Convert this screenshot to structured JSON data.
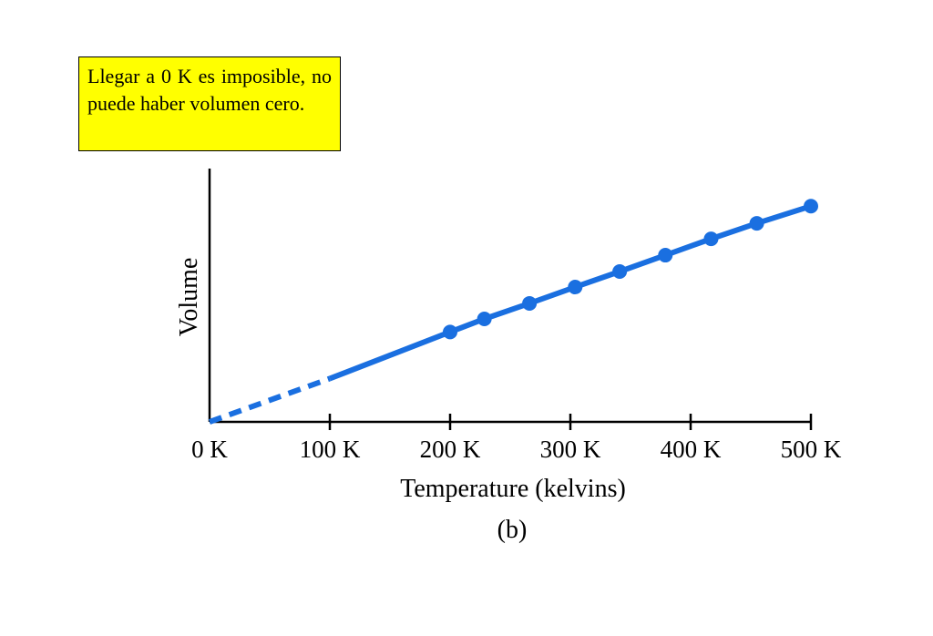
{
  "note": {
    "text": "Llegar a 0 K es imposible, no puede haber volumen cero."
  },
  "colors": {
    "series": "#1a6fe0",
    "note_background": "#ffff00",
    "axis": "#000000"
  },
  "chart_data": {
    "type": "line",
    "title": "",
    "xlabel": "Temperature (kelvins)",
    "ylabel": "Volume",
    "caption": "(b)",
    "xlim": [
      0,
      500
    ],
    "ylim": [
      0,
      3.1
    ],
    "x_ticks": [
      0,
      100,
      200,
      300,
      400,
      500
    ],
    "x_tick_labels": [
      "0 K",
      "100 K",
      "200 K",
      "300 K",
      "400 K",
      "500 K"
    ],
    "y_ticks": [],
    "grid": false,
    "legend": "none",
    "series": [
      {
        "style": "solid-with-markers",
        "x": [
          200,
          228,
          256,
          284,
          312,
          340,
          368,
          396,
          424,
          452,
          480,
          500
        ],
        "points": [
          {
            "x": 200,
            "y": 1.1
          },
          {
            "x": 228.5,
            "y": 1.26
          },
          {
            "x": 266,
            "y": 1.45
          },
          {
            "x": 304,
            "y": 1.65
          },
          {
            "x": 341,
            "y": 1.84
          },
          {
            "x": 379,
            "y": 2.04
          },
          {
            "x": 417,
            "y": 2.24
          },
          {
            "x": 455,
            "y": 2.43
          },
          {
            "x": 500,
            "y": 2.64
          }
        ]
      },
      {
        "style": "solid-extrapolation",
        "points": [
          {
            "x": 100,
            "y": 0.53
          },
          {
            "x": 200,
            "y": 1.1
          }
        ]
      },
      {
        "style": "dashed-extrapolation",
        "points": [
          {
            "x": 0,
            "y": 0
          },
          {
            "x": 100,
            "y": 0.53
          }
        ]
      }
    ]
  }
}
